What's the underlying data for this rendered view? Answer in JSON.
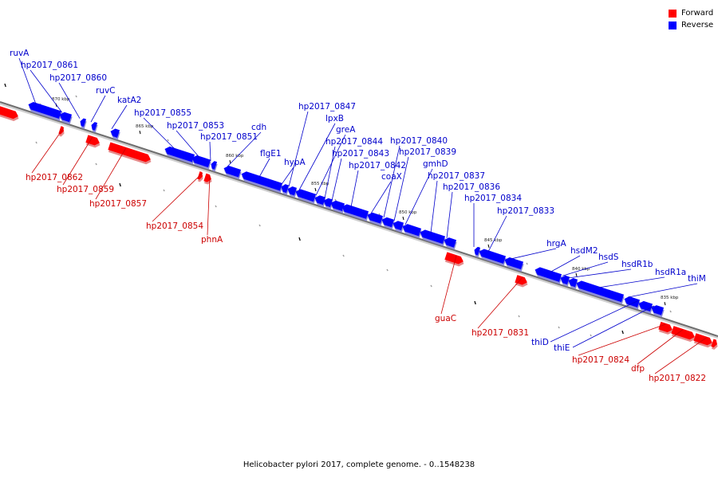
{
  "legend": {
    "forward_label": "Forward",
    "reverse_label": "Reverse",
    "forward_color": "#ff0000",
    "reverse_color": "#0000ff"
  },
  "caption": "Helicobacter pylori 2017, complete genome. - 0..1548238",
  "scale_ticks": [
    "870 kbp",
    "865 kbp",
    "860 kbp",
    "855 kbp",
    "850 kbp",
    "845 kbp",
    "840 kbp",
    "835 kbp"
  ],
  "genes": [
    {
      "name": "ruvA",
      "strand": "reverse"
    },
    {
      "name": "hp2017_0861",
      "strand": "reverse"
    },
    {
      "name": "hp2017_0860",
      "strand": "reverse"
    },
    {
      "name": "ruvC",
      "strand": "reverse"
    },
    {
      "name": "katA2",
      "strand": "reverse"
    },
    {
      "name": "hp2017_0855",
      "strand": "reverse"
    },
    {
      "name": "hp2017_0853",
      "strand": "reverse"
    },
    {
      "name": "hp2017_0851",
      "strand": "reverse"
    },
    {
      "name": "cdh",
      "strand": "reverse"
    },
    {
      "name": "flgE1",
      "strand": "reverse"
    },
    {
      "name": "hypA",
      "strand": "reverse"
    },
    {
      "name": "hp2017_0847",
      "strand": "reverse"
    },
    {
      "name": "lpxB",
      "strand": "reverse"
    },
    {
      "name": "greA",
      "strand": "reverse"
    },
    {
      "name": "hp2017_0844",
      "strand": "reverse"
    },
    {
      "name": "hp2017_0843",
      "strand": "reverse"
    },
    {
      "name": "hp2017_0842",
      "strand": "reverse"
    },
    {
      "name": "coaX",
      "strand": "reverse"
    },
    {
      "name": "hp2017_0840",
      "strand": "reverse"
    },
    {
      "name": "hp2017_0839",
      "strand": "reverse"
    },
    {
      "name": "gmhD",
      "strand": "reverse"
    },
    {
      "name": "hp2017_0837",
      "strand": "reverse"
    },
    {
      "name": "hp2017_0836",
      "strand": "reverse"
    },
    {
      "name": "hp2017_0834",
      "strand": "reverse"
    },
    {
      "name": "hp2017_0833",
      "strand": "reverse"
    },
    {
      "name": "hrgA",
      "strand": "reverse"
    },
    {
      "name": "hsdM2",
      "strand": "reverse"
    },
    {
      "name": "hsdS",
      "strand": "reverse"
    },
    {
      "name": "hsdR1b",
      "strand": "reverse"
    },
    {
      "name": "hsdR1a",
      "strand": "reverse"
    },
    {
      "name": "thiM",
      "strand": "reverse"
    },
    {
      "name": "thiD",
      "strand": "reverse"
    },
    {
      "name": "thiE",
      "strand": "reverse"
    },
    {
      "name": "hp2017_0862",
      "strand": "forward"
    },
    {
      "name": "hp2017_0859",
      "strand": "forward"
    },
    {
      "name": "hp2017_0857",
      "strand": "forward"
    },
    {
      "name": "hp2017_0854",
      "strand": "forward"
    },
    {
      "name": "phnA",
      "strand": "forward"
    },
    {
      "name": "guaC",
      "strand": "forward"
    },
    {
      "name": "hp2017_0831",
      "strand": "forward"
    },
    {
      "name": "hp2017_0824",
      "strand": "forward"
    },
    {
      "name": "dfp",
      "strand": "forward"
    },
    {
      "name": "hp2017_0822",
      "strand": "forward"
    }
  ]
}
